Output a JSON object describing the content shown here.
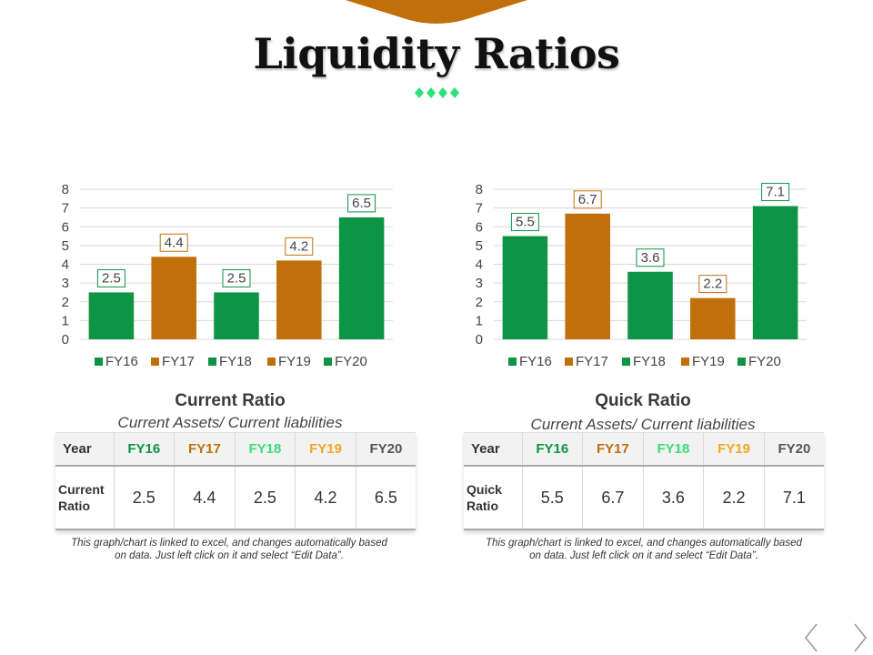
{
  "title": "Liquidity Ratios",
  "colors": {
    "green": "#0d9444",
    "orange": "#c0700a",
    "light_green": "#3ddb7a",
    "light_orange": "#f5a623",
    "gray": "#555555"
  },
  "chart_data": [
    {
      "type": "bar",
      "title": "Current Ratio",
      "subtitle": "Current Assets/ Current liabilities",
      "categories": [
        "FY16",
        "FY17",
        "FY18",
        "FY19",
        "FY20"
      ],
      "values": [
        2.5,
        4.4,
        2.5,
        4.2,
        6.5
      ],
      "value_labels": [
        "2.5",
        "4.4",
        "2.5",
        "4.2",
        "6.5"
      ],
      "colors": [
        "#0d9444",
        "#c0700a",
        "#0d9444",
        "#c0700a",
        "#0d9444"
      ],
      "ylim": [
        0,
        8
      ],
      "yticks": [
        "0",
        "1",
        "2",
        "3",
        "4",
        "5",
        "6",
        "7",
        "8"
      ],
      "grid": true,
      "legend_position": "bottom"
    },
    {
      "type": "bar",
      "title": "Quick Ratio",
      "subtitle": "Current Assets/ Current liabilities",
      "categories": [
        "FY16",
        "FY17",
        "FY18",
        "FY19",
        "FY20"
      ],
      "values": [
        5.5,
        6.7,
        3.6,
        2.2,
        7.1
      ],
      "value_labels": [
        "5.5",
        "6.7",
        "3.6",
        "2.2",
        "7.1"
      ],
      "colors": [
        "#0d9444",
        "#c0700a",
        "#0d9444",
        "#c0700a",
        "#0d9444"
      ],
      "ylim": [
        0,
        8
      ],
      "yticks": [
        "0",
        "1",
        "2",
        "3",
        "4",
        "5",
        "6",
        "7",
        "8"
      ],
      "grid": true,
      "legend_position": "bottom"
    }
  ],
  "tables": [
    {
      "header_label": "Year",
      "columns": [
        "FY16",
        "FY17",
        "FY18",
        "FY19",
        "FY20"
      ],
      "column_colors": [
        "#0d9444",
        "#c0700a",
        "#3ddb7a",
        "#f5a623",
        "#555555"
      ],
      "row_label_line1": "Current",
      "row_label_line2": "Ratio",
      "values": [
        "2.5",
        "4.4",
        "2.5",
        "4.2",
        "6.5"
      ]
    },
    {
      "header_label": "Year",
      "columns": [
        "FY16",
        "FY17",
        "FY18",
        "FY19",
        "FY20"
      ],
      "column_colors": [
        "#0d9444",
        "#c0700a",
        "#3ddb7a",
        "#f5a623",
        "#555555"
      ],
      "row_label_line1": "Quick",
      "row_label_line2": "Ratio",
      "values": [
        "5.5",
        "6.7",
        "3.6",
        "2.2",
        "7.1"
      ]
    }
  ],
  "note_line1": "This graph/chart is linked to excel, and changes automatically based",
  "note_line2": "on data. Just left click on it and select “Edit Data”.",
  "nav": {
    "prev_icon": "chevron-left-icon",
    "next_icon": "chevron-right-icon"
  }
}
